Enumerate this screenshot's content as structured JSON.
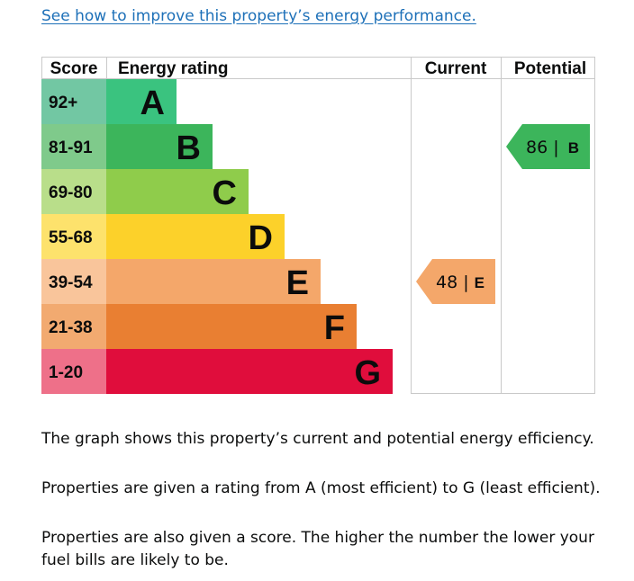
{
  "link": {
    "text": "See how to improve this property’s energy performance."
  },
  "chart_data": {
    "type": "bar",
    "headers": {
      "score": "Score",
      "rating": "Energy rating",
      "current": "Current",
      "potential": "Potential"
    },
    "bands": [
      {
        "letter": "A",
        "score": "92+",
        "color": "#008054",
        "bar_color": "#3ac37f",
        "score_bg": "#72c7a3"
      },
      {
        "letter": "B",
        "score": "81-91",
        "color": "#19b459",
        "bar_color": "#3cb55b",
        "score_bg": "#7fca8b"
      },
      {
        "letter": "C",
        "score": "69-80",
        "color": "#8dce46",
        "bar_color": "#8fcc4b",
        "score_bg": "#b9de8a"
      },
      {
        "letter": "D",
        "score": "55-68",
        "color": "#ffd500",
        "bar_color": "#fcd12a",
        "score_bg": "#fde26c"
      },
      {
        "letter": "E",
        "score": "39-54",
        "color": "#fcaa65",
        "bar_color": "#f4a76a",
        "score_bg": "#f9c59b"
      },
      {
        "letter": "F",
        "score": "21-38",
        "color": "#ef8023",
        "bar_color": "#e97f32",
        "score_bg": "#f2aa70"
      },
      {
        "letter": "G",
        "score": "1-20",
        "color": "#e9153b",
        "bar_color": "#e00d3c",
        "score_bg": "#ee7089"
      }
    ],
    "current": {
      "score": 48,
      "band": "E",
      "color": "#f4a76a"
    },
    "potential": {
      "score": 86,
      "band": "B",
      "color": "#3cb55b"
    }
  },
  "text": {
    "para1": "The graph shows this property’s current and potential energy efficiency.",
    "para2": "Properties are given a rating from A (most efficient) to G (least efficient).",
    "para3": "Properties are also given a score. The higher the number the lower your fuel bills are likely to be."
  }
}
